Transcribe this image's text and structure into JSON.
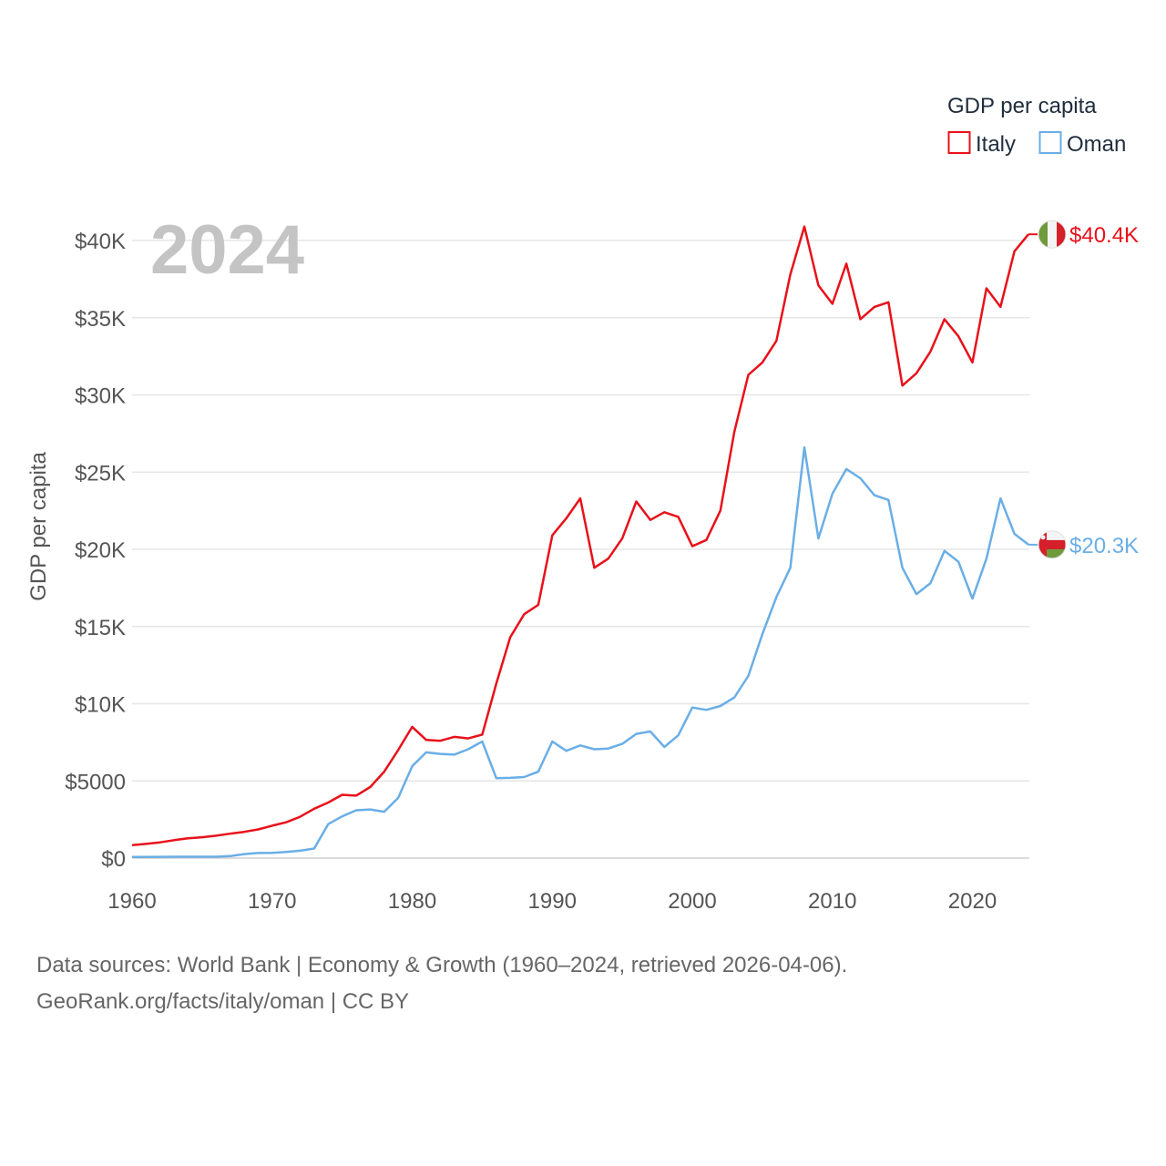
{
  "chart_data": {
    "type": "line",
    "title": "",
    "year_display": "2024",
    "xlabel": "",
    "ylabel": "GDP per capita",
    "xlim": [
      1960,
      2024
    ],
    "ylim": [
      0,
      42000
    ],
    "x_ticks": [
      1960,
      1970,
      1980,
      1990,
      2000,
      2010,
      2020
    ],
    "x_tick_labels": [
      "1960",
      "1970",
      "1980",
      "1990",
      "2000",
      "2010",
      "2020"
    ],
    "y_ticks": [
      0,
      5000,
      10000,
      15000,
      20000,
      25000,
      30000,
      35000,
      40000
    ],
    "y_tick_labels": [
      "$0",
      "$5000",
      "$10K",
      "$15K",
      "$20K",
      "$25K",
      "$30K",
      "$35K",
      "$40K"
    ],
    "grid": true,
    "legend": {
      "title": "GDP per capita",
      "position": "top-right"
    },
    "x": [
      1960,
      1961,
      1962,
      1963,
      1964,
      1965,
      1966,
      1967,
      1968,
      1969,
      1970,
      1971,
      1972,
      1973,
      1974,
      1975,
      1976,
      1977,
      1978,
      1979,
      1980,
      1981,
      1982,
      1983,
      1984,
      1985,
      1986,
      1987,
      1988,
      1989,
      1990,
      1991,
      1992,
      1993,
      1994,
      1995,
      1996,
      1997,
      1998,
      1999,
      2000,
      2001,
      2002,
      2003,
      2004,
      2005,
      2006,
      2007,
      2008,
      2009,
      2010,
      2011,
      2012,
      2013,
      2014,
      2015,
      2016,
      2017,
      2018,
      2019,
      2020,
      2021,
      2022,
      2023,
      2024
    ],
    "series": [
      {
        "name": "Italy",
        "color": "#e8111a",
        "flag": "italy-flag",
        "end_label": "$40.4K",
        "values": [
          840,
          920,
          1020,
          1160,
          1280,
          1350,
          1450,
          1580,
          1700,
          1860,
          2100,
          2320,
          2680,
          3200,
          3600,
          4100,
          4050,
          4600,
          5600,
          7000,
          8500,
          7650,
          7600,
          7850,
          7750,
          8000,
          11300,
          14300,
          15800,
          16400,
          20900,
          22000,
          23300,
          18800,
          19400,
          20700,
          23100,
          21900,
          22400,
          22100,
          20200,
          20600,
          22500,
          27600,
          31300,
          32100,
          33500,
          37800,
          40900,
          37100,
          35900,
          38500,
          34900,
          35700,
          36000,
          30600,
          31400,
          32800,
          34900,
          33800,
          32100,
          36900,
          35700,
          39300,
          40400
        ]
      },
      {
        "name": "Oman",
        "color": "#6aaee6",
        "flag": "oman-flag",
        "end_label": "$20.3K",
        "values": [
          70,
          70,
          80,
          90,
          90,
          90,
          90,
          130,
          260,
          330,
          340,
          400,
          480,
          620,
          2200,
          2700,
          3100,
          3150,
          3000,
          3900,
          5950,
          6850,
          6750,
          6700,
          7050,
          7550,
          5180,
          5200,
          5250,
          5600,
          7550,
          6950,
          7300,
          7050,
          7100,
          7400,
          8050,
          8200,
          7200,
          7950,
          9750,
          9600,
          9850,
          10400,
          11800,
          14500,
          16900,
          18800,
          26600,
          20700,
          23600,
          25200,
          24600,
          23500,
          23200,
          18800,
          17100,
          17800,
          19900,
          19200,
          16800,
          19400,
          23300,
          21000,
          20300
        ]
      }
    ]
  },
  "source": {
    "line1": "Data sources: World Bank | Economy & Growth (1960–2024, retrieved 2026-04-06).",
    "line2": "GeoRank.org/facts/italy/oman | CC BY"
  }
}
